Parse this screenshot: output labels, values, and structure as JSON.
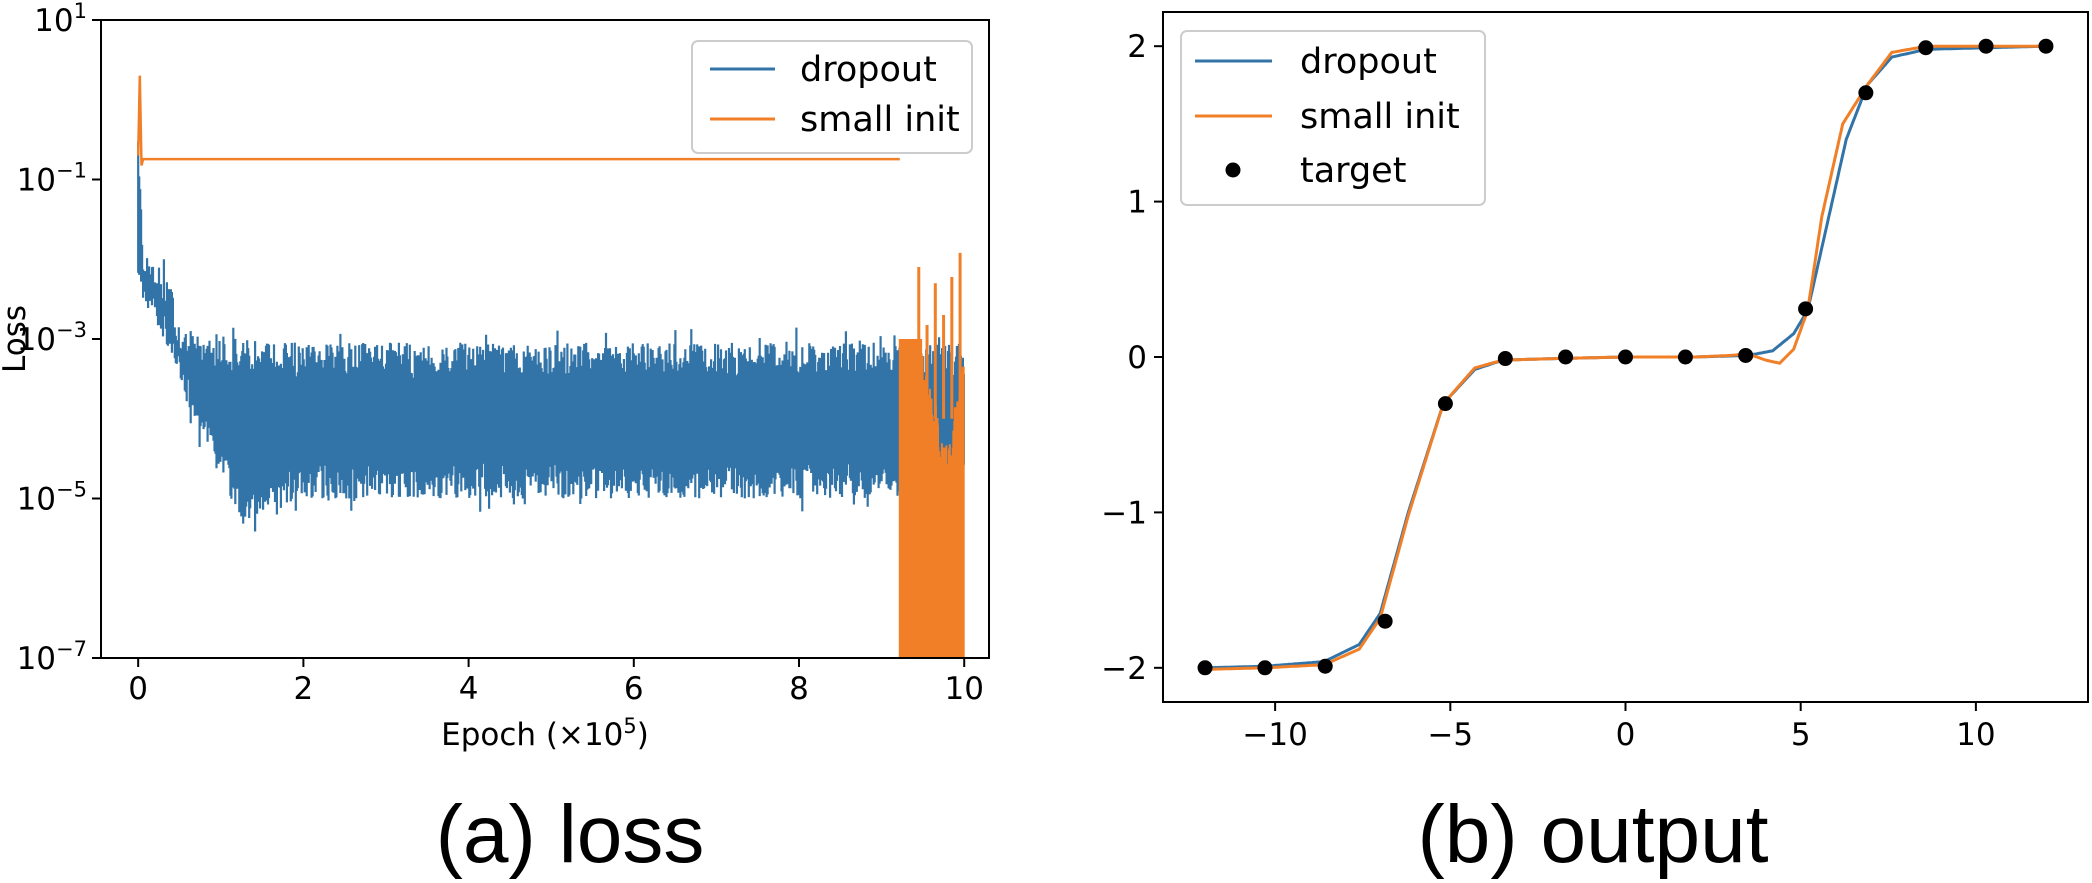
{
  "colors": {
    "dropout": "#3274a8",
    "small_init": "#f07f27",
    "target": "#000000"
  },
  "chart_data": [
    {
      "type": "line",
      "caption": "(a) loss",
      "xlabel_main": "Epoch (×10",
      "xlabel_exp": "5",
      "xlabel_close": ")",
      "ylabel": "Loss",
      "yscale": "log",
      "xlim": [
        -0.45,
        10.3
      ],
      "ylim_log10": [
        -7,
        1
      ],
      "xticks": [
        0,
        2,
        4,
        6,
        8,
        10
      ],
      "xtick_labels": [
        "0",
        "2",
        "4",
        "6",
        "8",
        "10"
      ],
      "yticks_log10": [
        -7,
        -5,
        -3,
        -1,
        1
      ],
      "ytick_base": "10",
      "ytick_exps": [
        "−7",
        "−5",
        "−3",
        "−1",
        "1"
      ],
      "legend_position": "upper right",
      "series": [
        {
          "name": "dropout",
          "x": [
            0.0,
            0.05,
            0.2,
            0.5,
            0.8,
            1.1,
            1.3,
            2.0,
            4.0,
            6.0,
            8.0,
            9.3,
            10.0
          ],
          "y_upper": [
            0.3,
            0.02,
            0.01,
            0.0015,
            0.0012,
            0.0011,
            0.001,
            0.0009,
            0.0009,
            0.0009,
            0.0009,
            0.0009,
            0.0009
          ],
          "y_lower": [
            0.005,
            0.003,
            0.0015,
            0.0002,
            4e-05,
            1e-05,
            4e-06,
            1e-05,
            1e-05,
            1e-05,
            1e-05,
            1e-05,
            1e-05
          ]
        },
        {
          "name": "small init",
          "x": [
            0.0,
            0.02,
            0.04,
            0.06,
            9.22,
            9.26,
            9.35,
            9.5,
            9.7,
            9.85,
            10.0
          ],
          "y": [
            0.2,
            2.0,
            0.15,
            0.18,
            0.18,
            2e-05,
            1e-05,
            1e-06,
            1e-07,
            1e-07,
            1e-06
          ],
          "spike_x": [
            9.45,
            9.55,
            9.65,
            9.75,
            9.85,
            9.95
          ],
          "spike_y": [
            0.008,
            0.0015,
            0.005,
            0.002,
            0.006,
            0.012
          ]
        }
      ]
    },
    {
      "type": "line",
      "caption": "(b) output",
      "xlabel": "",
      "ylabel": "",
      "xlim": [
        -13.2,
        13.2
      ],
      "ylim": [
        -2.22,
        2.22
      ],
      "xticks": [
        -10,
        -5,
        0,
        5,
        10
      ],
      "xtick_labels": [
        "−10",
        "−5",
        "0",
        "5",
        "10"
      ],
      "yticks": [
        -2,
        -1,
        0,
        1,
        2
      ],
      "ytick_labels": [
        "−2",
        "−1",
        "0",
        "1",
        "2"
      ],
      "legend_position": "upper left",
      "series": [
        {
          "name": "dropout",
          "x": [
            -12.0,
            -10.3,
            -8.6,
            -7.6,
            -7.0,
            -6.2,
            -5.2,
            -4.3,
            -3.5,
            -2.0,
            0.0,
            2.0,
            3.5,
            4.2,
            4.8,
            5.2,
            5.7,
            6.3,
            6.9,
            7.6,
            8.6,
            10.3,
            12.0
          ],
          "y": [
            -2.0,
            -1.99,
            -1.96,
            -1.85,
            -1.65,
            -1.0,
            -0.3,
            -0.08,
            -0.02,
            -0.01,
            0.0,
            0.0,
            0.01,
            0.04,
            0.15,
            0.3,
            0.8,
            1.4,
            1.75,
            1.93,
            1.98,
            1.99,
            2.0
          ]
        },
        {
          "name": "small init",
          "x": [
            -12.0,
            -10.3,
            -8.6,
            -7.6,
            -7.0,
            -6.2,
            -5.2,
            -4.3,
            -3.5,
            -2.0,
            0.0,
            2.0,
            3.0,
            3.5,
            4.0,
            4.4,
            4.8,
            5.2,
            5.6,
            6.2,
            6.9,
            7.6,
            8.6,
            10.3,
            12.0
          ],
          "y": [
            -2.01,
            -2.0,
            -1.98,
            -1.88,
            -1.68,
            -1.02,
            -0.3,
            -0.07,
            -0.02,
            -0.01,
            0.0,
            0.0,
            0.01,
            0.02,
            -0.02,
            -0.04,
            0.05,
            0.3,
            0.9,
            1.5,
            1.75,
            1.96,
            2.0,
            2.0,
            2.0
          ]
        },
        {
          "name": "target",
          "x": [
            -12.0,
            -10.29,
            -8.57,
            -6.86,
            -5.14,
            -3.43,
            -1.71,
            0.0,
            1.71,
            3.43,
            5.14,
            6.86,
            8.57,
            10.29,
            12.0
          ],
          "y": [
            -2.0,
            -2.0,
            -1.99,
            -1.7,
            -0.3,
            -0.01,
            0.0,
            0.0,
            0.0,
            0.01,
            0.31,
            1.7,
            1.99,
            2.0,
            2.0
          ]
        }
      ]
    }
  ]
}
